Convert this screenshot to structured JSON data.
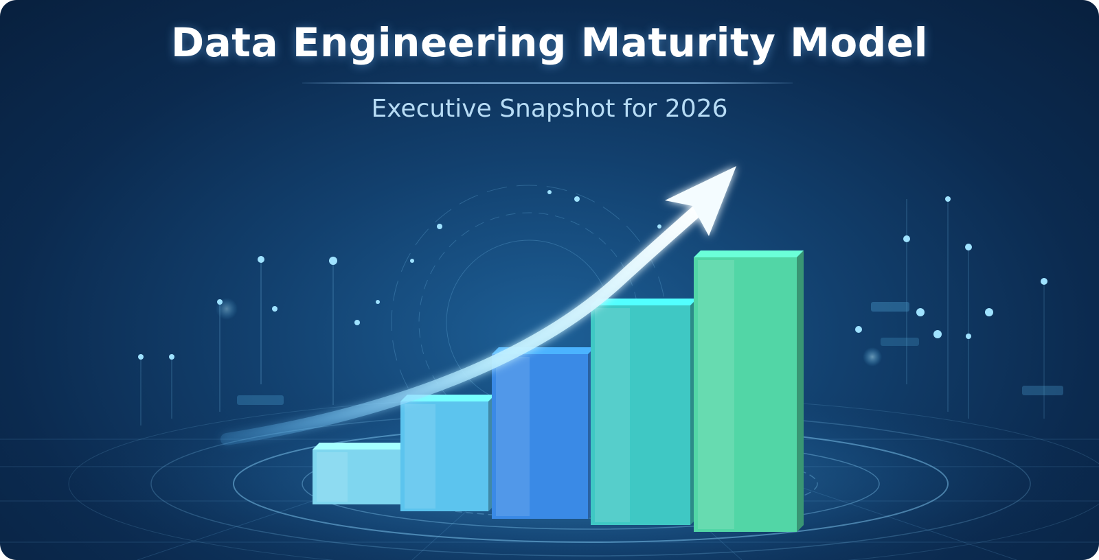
{
  "hero": {
    "title": "Data Engineering Maturity Model",
    "subtitle": "Executive Snapshot for 2026"
  },
  "chart_data": {
    "type": "bar",
    "values": [
      1,
      2,
      3,
      4,
      5
    ],
    "colors": [
      "#7fd6ef",
      "#5cc4ee",
      "#3a8ae6",
      "#3fc8c4",
      "#52d6a6"
    ],
    "trend_arrow": true
  },
  "palette": {
    "background": "#0b2a4f",
    "accent": "#7fe0ff",
    "title": "#ffffff",
    "subtitle": "#b7dcf5"
  }
}
